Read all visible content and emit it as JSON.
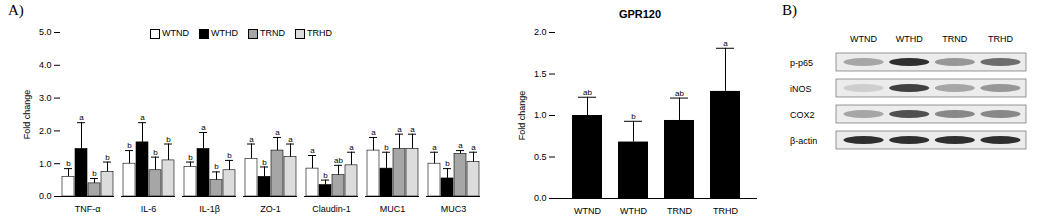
{
  "panel_labels": [
    "A)",
    "B)"
  ],
  "chart_data": [
    {
      "type": "bar",
      "ylabel": "Fold change",
      "categories": [
        "TNF-α",
        "IL-6",
        "IL-1β",
        "ZO-1",
        "Claudin-1",
        "MUC1",
        "MUC3"
      ],
      "series": [
        {
          "name": "WTND",
          "color": "#ffffff",
          "values": [
            0.6,
            1.0,
            0.9,
            1.15,
            0.85,
            1.4,
            1.0
          ],
          "errors": [
            0.25,
            0.4,
            0.15,
            0.45,
            0.4,
            0.4,
            0.35
          ],
          "letters": [
            "b",
            "b",
            "b",
            "a",
            "a",
            "a",
            "a"
          ]
        },
        {
          "name": "WTHD",
          "color": "#000000",
          "values": [
            1.45,
            1.65,
            1.45,
            0.6,
            0.35,
            0.85,
            0.55
          ],
          "errors": [
            0.8,
            0.6,
            0.5,
            0.3,
            0.15,
            0.5,
            0.3
          ],
          "letters": [
            "a",
            "a",
            "a",
            "b",
            "b",
            "b",
            "b"
          ]
        },
        {
          "name": "TRND",
          "color": "#a6a6a6",
          "values": [
            0.4,
            0.8,
            0.5,
            1.4,
            0.65,
            1.45,
            1.3
          ],
          "errors": [
            0.15,
            0.4,
            0.25,
            0.4,
            0.3,
            0.45,
            0.1
          ],
          "letters": [
            "b",
            "b",
            "b",
            "a",
            "ab",
            "a",
            "a"
          ]
        },
        {
          "name": "TRHD",
          "color": "#dcdcdc",
          "values": [
            0.75,
            1.1,
            0.8,
            1.2,
            0.95,
            1.45,
            1.05
          ],
          "errors": [
            0.3,
            0.5,
            0.3,
            0.4,
            0.4,
            0.45,
            0.3
          ],
          "letters": [
            "b",
            "b",
            "b",
            "a",
            "a",
            "a",
            "a"
          ]
        }
      ],
      "ylim": [
        0,
        5
      ],
      "yticks": [
        0,
        1,
        2,
        3,
        4,
        5
      ],
      "legend": "top"
    },
    {
      "type": "bar",
      "title": "GPR120",
      "ylabel": "Fold change",
      "categories": [
        "WTND",
        "WTHD",
        "TRND",
        "TRHD"
      ],
      "values": [
        1.0,
        0.68,
        0.94,
        1.29
      ],
      "errors": [
        0.22,
        0.25,
        0.27,
        0.52
      ],
      "letters": [
        "ab",
        "b",
        "ab",
        "a"
      ],
      "color": "#000000",
      "ylim": [
        0,
        2
      ],
      "yticks": [
        0,
        0.5,
        1,
        1.5,
        2
      ]
    }
  ],
  "blot": {
    "columns": [
      "WTND",
      "WTHD",
      "TRND",
      "TRHD"
    ],
    "rows": [
      {
        "label": "p-p65",
        "intensities": [
          0.45,
          0.85,
          0.5,
          0.65
        ]
      },
      {
        "label": "iNOS",
        "intensities": [
          0.3,
          0.8,
          0.45,
          0.5
        ]
      },
      {
        "label": "COX2",
        "intensities": [
          0.45,
          0.75,
          0.55,
          0.55
        ]
      },
      {
        "label": "β-actin",
        "intensities": [
          0.85,
          0.85,
          0.85,
          0.85
        ]
      }
    ]
  }
}
